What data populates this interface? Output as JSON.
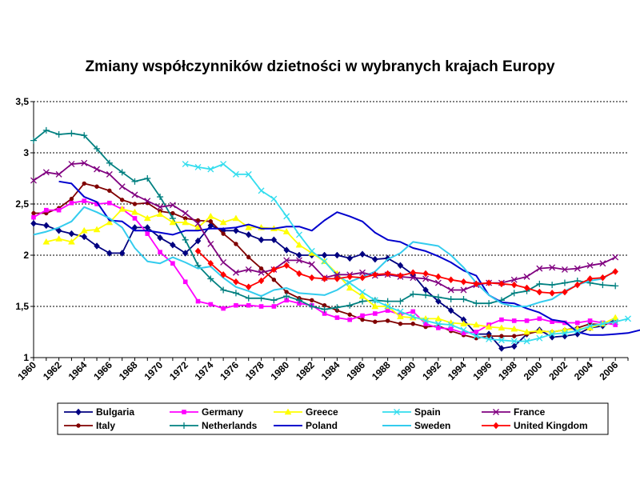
{
  "chart_data": {
    "type": "line",
    "title": "Zmiany współczynników dzietności w wybranych krajach Europy",
    "xlabel": "",
    "ylabel": "",
    "ylim": [
      1,
      3.5
    ],
    "xlim": [
      1960,
      2007
    ],
    "y_ticks": [
      "1",
      "1,5",
      "2",
      "2,5",
      "3",
      "3,5"
    ],
    "x_ticks": [
      "1960",
      "1962",
      "1964",
      "1966",
      "1968",
      "1970",
      "1972",
      "1974",
      "1976",
      "1978",
      "1980",
      "1982",
      "1984",
      "1986",
      "1988",
      "1990",
      "1992",
      "1994",
      "1996",
      "1998",
      "2000",
      "2002",
      "2004",
      "2006"
    ],
    "grid": "horizontal dashed",
    "legend_position": "bottom",
    "series": [
      {
        "name": "Bulgaria",
        "color": "#000080",
        "marker": "diamond",
        "start": 1960,
        "values": [
          2.31,
          2.29,
          2.24,
          2.21,
          2.18,
          2.09,
          2.02,
          2.02,
          2.27,
          2.27,
          2.17,
          2.1,
          2.02,
          2.14,
          2.29,
          2.24,
          2.24,
          2.2,
          2.15,
          2.15,
          2.05,
          2.0,
          2.0,
          2.0,
          2.0,
          1.97,
          2.01,
          1.96,
          1.97,
          1.9,
          1.81,
          1.66,
          1.55,
          1.46,
          1.37,
          1.23,
          1.23,
          1.09,
          1.11,
          1.23,
          1.27,
          1.2,
          1.21,
          1.23,
          1.29,
          1.31,
          1.37
        ]
      },
      {
        "name": "Italy",
        "color": "#800000",
        "marker": "circle",
        "start": 1960,
        "values": [
          2.41,
          2.41,
          2.46,
          2.55,
          2.7,
          2.67,
          2.63,
          2.54,
          2.5,
          2.51,
          2.43,
          2.41,
          2.36,
          2.34,
          2.33,
          2.21,
          2.11,
          1.98,
          1.87,
          1.76,
          1.64,
          1.58,
          1.56,
          1.51,
          1.46,
          1.42,
          1.37,
          1.35,
          1.36,
          1.33,
          1.33,
          1.3,
          1.31,
          1.26,
          1.22,
          1.19,
          1.21,
          1.21,
          1.21,
          1.23,
          1.26,
          1.25,
          1.27,
          1.29,
          1.33,
          1.32,
          1.35
        ]
      },
      {
        "name": "Germany",
        "color": "#ff00ff",
        "marker": "square",
        "start": 1960,
        "values": [
          2.37,
          2.44,
          2.44,
          2.51,
          2.53,
          2.5,
          2.51,
          2.45,
          2.36,
          2.21,
          2.03,
          1.92,
          1.74,
          1.55,
          1.52,
          1.48,
          1.51,
          1.51,
          1.5,
          1.5,
          1.56,
          1.53,
          1.51,
          1.43,
          1.39,
          1.37,
          1.41,
          1.43,
          1.46,
          1.42,
          1.45,
          1.33,
          1.29,
          1.28,
          1.24,
          1.25,
          1.32,
          1.37,
          1.36,
          1.36,
          1.38,
          1.35,
          1.34,
          1.34,
          1.36,
          1.34,
          1.32
        ]
      },
      {
        "name": "Netherlands",
        "color": "#008080",
        "marker": "plus",
        "start": 1960,
        "values": [
          3.12,
          3.22,
          3.18,
          3.19,
          3.17,
          3.04,
          2.9,
          2.81,
          2.72,
          2.75,
          2.57,
          2.36,
          2.15,
          1.9,
          1.77,
          1.66,
          1.63,
          1.58,
          1.58,
          1.56,
          1.6,
          1.56,
          1.5,
          1.47,
          1.49,
          1.51,
          1.55,
          1.56,
          1.55,
          1.55,
          1.62,
          1.61,
          1.59,
          1.57,
          1.57,
          1.53,
          1.53,
          1.56,
          1.63,
          1.65,
          1.72,
          1.71,
          1.73,
          1.75,
          1.73,
          1.71,
          1.7
        ]
      },
      {
        "name": "Greece",
        "color": "#ffff00",
        "marker": "triangle",
        "start": 1961,
        "values": [
          2.13,
          2.16,
          2.13,
          2.24,
          2.25,
          2.32,
          2.45,
          2.42,
          2.36,
          2.4,
          2.32,
          2.32,
          2.27,
          2.38,
          2.32,
          2.36,
          2.27,
          2.27,
          2.26,
          2.23,
          2.1,
          2.02,
          1.94,
          1.82,
          1.68,
          1.6,
          1.5,
          1.5,
          1.4,
          1.39,
          1.38,
          1.38,
          1.34,
          1.33,
          1.32,
          1.3,
          1.29,
          1.28,
          1.25,
          1.26,
          1.25,
          1.27,
          1.28,
          1.29,
          1.33,
          1.39
        ]
      },
      {
        "name": "Poland",
        "color": "#0000cd",
        "marker": "none",
        "start": 1962,
        "values": [
          2.72,
          2.7,
          2.57,
          2.52,
          2.34,
          2.33,
          2.24,
          2.24,
          2.22,
          2.2,
          2.24,
          2.24,
          2.26,
          2.26,
          2.27,
          2.3,
          2.26,
          2.26,
          2.28,
          2.28,
          2.24,
          2.34,
          2.42,
          2.38,
          2.33,
          2.22,
          2.15,
          2.13,
          2.07,
          2.04,
          1.99,
          1.93,
          1.85,
          1.8,
          1.61,
          1.54,
          1.53,
          1.48,
          1.44,
          1.37,
          1.35,
          1.25,
          1.22,
          1.22,
          1.23,
          1.24,
          1.27
        ]
      },
      {
        "name": "Spain",
        "color": "#33ddee",
        "marker": "x",
        "start": 1972,
        "values": [
          2.89,
          2.86,
          2.84,
          2.89,
          2.79,
          2.79,
          2.63,
          2.55,
          2.38,
          2.2,
          2.04,
          1.94,
          1.8,
          1.73,
          1.64,
          1.56,
          1.5,
          1.45,
          1.4,
          1.36,
          1.33,
          1.32,
          1.27,
          1.21,
          1.18,
          1.17,
          1.16,
          1.16,
          1.19,
          1.23,
          1.24,
          1.26,
          1.31,
          1.33,
          1.35,
          1.38
        ]
      },
      {
        "name": "Sweden",
        "color": "#33ccee",
        "marker": "none",
        "start": 1960,
        "values": [
          2.2,
          2.23,
          2.27,
          2.33,
          2.47,
          2.42,
          2.36,
          2.27,
          2.07,
          1.94,
          1.92,
          1.98,
          1.93,
          1.87,
          1.89,
          1.78,
          1.69,
          1.65,
          1.6,
          1.66,
          1.68,
          1.63,
          1.62,
          1.61,
          1.66,
          1.74,
          1.79,
          1.84,
          1.96,
          2.02,
          2.13,
          2.11,
          2.09,
          2.0,
          1.88,
          1.73,
          1.61,
          1.53,
          1.5,
          1.5,
          1.54,
          1.57,
          1.65,
          1.71,
          1.75,
          1.77,
          1.85
        ]
      },
      {
        "name": "France",
        "color": "#800080",
        "marker": "x",
        "start": 1960,
        "values": [
          2.73,
          2.81,
          2.79,
          2.89,
          2.9,
          2.84,
          2.79,
          2.67,
          2.59,
          2.53,
          2.47,
          2.49,
          2.41,
          2.31,
          2.11,
          1.93,
          1.83,
          1.86,
          1.83,
          1.86,
          1.95,
          1.95,
          1.91,
          1.78,
          1.81,
          1.81,
          1.83,
          1.8,
          1.81,
          1.79,
          1.78,
          1.77,
          1.73,
          1.66,
          1.66,
          1.71,
          1.73,
          1.73,
          1.76,
          1.79,
          1.87,
          1.88,
          1.86,
          1.87,
          1.9,
          1.92,
          1.98
        ]
      },
      {
        "name": "United Kingdom",
        "color": "#ff0000",
        "marker": "diamond",
        "start": 1973,
        "values": [
          2.04,
          1.92,
          1.81,
          1.74,
          1.69,
          1.75,
          1.86,
          1.9,
          1.82,
          1.78,
          1.77,
          1.77,
          1.79,
          1.78,
          1.81,
          1.82,
          1.8,
          1.83,
          1.82,
          1.79,
          1.76,
          1.74,
          1.72,
          1.73,
          1.72,
          1.71,
          1.68,
          1.64,
          1.63,
          1.64,
          1.71,
          1.77,
          1.78,
          1.84
        ]
      }
    ]
  }
}
